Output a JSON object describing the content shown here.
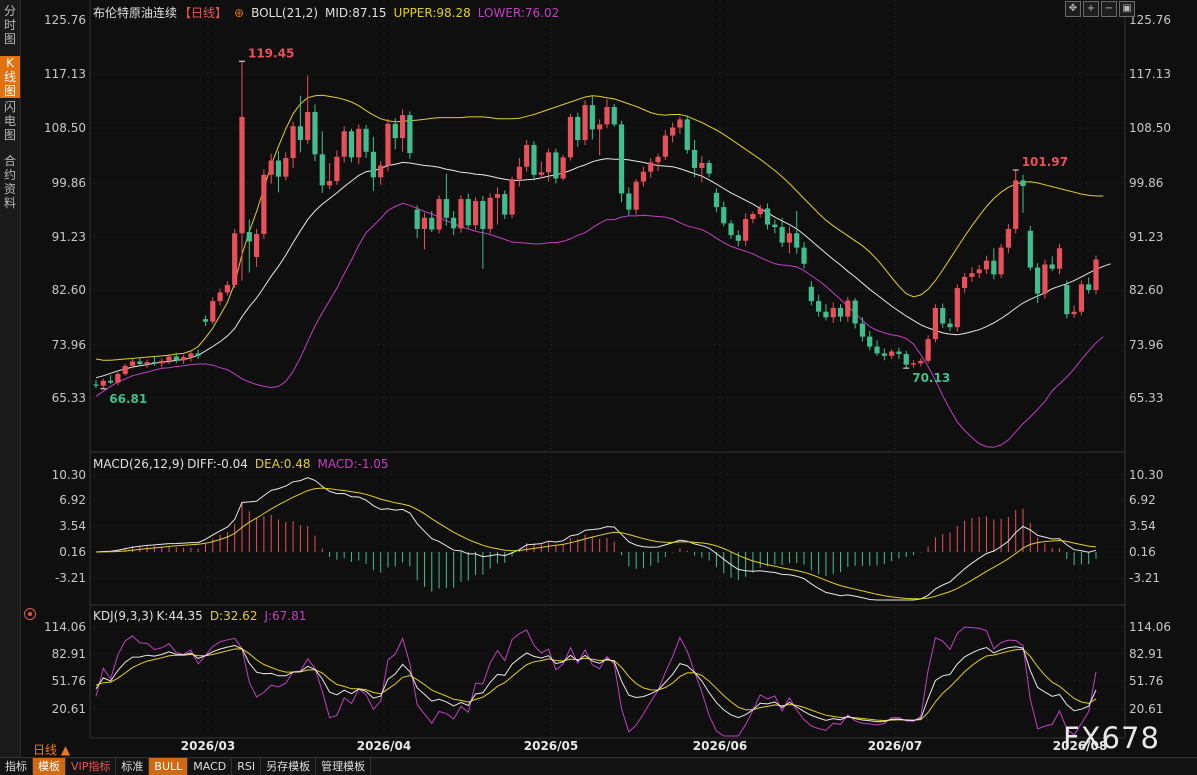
{
  "sidebar": {
    "tabs": [
      {
        "label": "分时图",
        "active": false
      },
      {
        "label": "K线图",
        "active": true
      },
      {
        "label": "闪电图",
        "active": false
      },
      {
        "label": "合约资料",
        "active": false
      }
    ]
  },
  "header": {
    "title": "布伦特原油连续",
    "period_tag": "【日线】",
    "boll_label": "BOLL(21,2)",
    "mid": "MID:87.15",
    "upper": "UPPER:98.28",
    "lower": "LOWER:76.02"
  },
  "macd_header": {
    "label": "MACD(26,12,9)",
    "diff": "DIFF:-0.04",
    "dea": "DEA:0.48",
    "macd": "MACD:-1.05"
  },
  "kdj_header": {
    "label": "KDJ(9,3,3)",
    "k": "K:44.35",
    "d": "D:32.62",
    "j": "J:67.81"
  },
  "price_axis": [
    "125.76",
    "117.13",
    "108.50",
    "99.86",
    "91.23",
    "82.60",
    "73.96",
    "65.33"
  ],
  "macd_axis": [
    "10.30",
    "6.92",
    "3.54",
    "0.16",
    "-3.21"
  ],
  "kdj_axis": [
    "114.06",
    "82.91",
    "51.76",
    "20.61"
  ],
  "x_labels": [
    "2026/03",
    "2026/04",
    "2026/05",
    "2026/06",
    "2026/07",
    "2026/08"
  ],
  "annotations": {
    "high1": "119.45",
    "low1": "66.81",
    "high2": "101.97",
    "low2": "70.13"
  },
  "colors": {
    "up": "#e8505b",
    "down": "#3fbf8f",
    "mid": "#e8e8e8",
    "upper": "#e0d020",
    "lower": "#c040c0",
    "k": "#e8e8e8",
    "d": "#e0d020",
    "j": "#c040c0",
    "accent": "#e07212"
  },
  "toolbar_icons": [
    "move-icon",
    "zoom-in-icon",
    "zoom-out-icon",
    "window-icon"
  ],
  "period_label": "日线 ▲",
  "footer_tabs": [
    {
      "label": "指标",
      "style": "normal"
    },
    {
      "label": "模板",
      "style": "orange"
    },
    {
      "label": "VIP指标",
      "style": "vip"
    },
    {
      "label": "标准",
      "style": "normal"
    },
    {
      "label": "BULL",
      "style": "orange"
    },
    {
      "label": "MACD",
      "style": "normal"
    },
    {
      "label": "RSI",
      "style": "normal"
    },
    {
      "label": "另存模板",
      "style": "normal"
    },
    {
      "label": "管理模板",
      "style": "normal"
    }
  ],
  "watermark": "FX678",
  "chart_data": {
    "type": "candlestick",
    "x_range": [
      "2026/02/13",
      "2026/08/06"
    ],
    "price_ylim": [
      65.33,
      125.76
    ],
    "candles": [
      {
        "o": 67.5,
        "h": 68.2,
        "l": 66.9,
        "c": 67.3
      },
      {
        "o": 67.3,
        "h": 68.4,
        "l": 66.81,
        "c": 68.1
      },
      {
        "o": 68.1,
        "h": 69.0,
        "l": 67.6,
        "c": 67.8
      },
      {
        "o": 67.8,
        "h": 69.5,
        "l": 67.4,
        "c": 69.2
      },
      {
        "o": 69.2,
        "h": 70.8,
        "l": 68.9,
        "c": 70.5
      },
      {
        "o": 70.5,
        "h": 71.6,
        "l": 70.1,
        "c": 71.2
      },
      {
        "o": 71.2,
        "h": 71.8,
        "l": 70.4,
        "c": 70.8
      },
      {
        "o": 70.8,
        "h": 71.5,
        "l": 70.2,
        "c": 71.1
      },
      {
        "o": 71.1,
        "h": 72.0,
        "l": 70.5,
        "c": 70.9
      },
      {
        "o": 70.9,
        "h": 71.7,
        "l": 70.3,
        "c": 71.3
      },
      {
        "o": 71.3,
        "h": 72.4,
        "l": 70.8,
        "c": 72.0
      },
      {
        "o": 72.0,
        "h": 72.6,
        "l": 70.9,
        "c": 71.4
      },
      {
        "o": 71.4,
        "h": 72.3,
        "l": 70.8,
        "c": 71.9
      },
      {
        "o": 71.9,
        "h": 72.8,
        "l": 71.2,
        "c": 72.5
      },
      {
        "o": 72.5,
        "h": 73.1,
        "l": 71.6,
        "c": 72.1
      },
      {
        "o": 78.0,
        "h": 78.6,
        "l": 76.9,
        "c": 77.6
      },
      {
        "o": 77.6,
        "h": 81.5,
        "l": 77.2,
        "c": 80.9
      },
      {
        "o": 80.9,
        "h": 82.9,
        "l": 80.2,
        "c": 82.3
      },
      {
        "o": 82.3,
        "h": 84.1,
        "l": 81.8,
        "c": 83.5
      },
      {
        "o": 83.5,
        "h": 92.5,
        "l": 83.0,
        "c": 91.8
      },
      {
        "o": 91.8,
        "h": 119.45,
        "l": 84.2,
        "c": 110.5
      },
      {
        "o": 92.0,
        "h": 94.0,
        "l": 85.5,
        "c": 90.5
      },
      {
        "o": 88.0,
        "h": 92.5,
        "l": 86.4,
        "c": 91.7
      },
      {
        "o": 91.7,
        "h": 102.1,
        "l": 90.9,
        "c": 101.2
      },
      {
        "o": 101.2,
        "h": 104.6,
        "l": 99.8,
        "c": 103.5
      },
      {
        "o": 103.5,
        "h": 105.0,
        "l": 98.4,
        "c": 100.9
      },
      {
        "o": 100.9,
        "h": 104.8,
        "l": 100.3,
        "c": 103.9
      },
      {
        "o": 103.9,
        "h": 109.7,
        "l": 102.3,
        "c": 109.0
      },
      {
        "o": 109.0,
        "h": 113.9,
        "l": 104.8,
        "c": 106.8
      },
      {
        "o": 106.8,
        "h": 117.2,
        "l": 106.2,
        "c": 111.3
      },
      {
        "o": 111.3,
        "h": 112.5,
        "l": 103.4,
        "c": 104.5
      },
      {
        "o": 104.5,
        "h": 108.2,
        "l": 98.3,
        "c": 99.5
      },
      {
        "o": 99.5,
        "h": 103.1,
        "l": 98.9,
        "c": 100.2
      },
      {
        "o": 100.2,
        "h": 105.1,
        "l": 99.6,
        "c": 104.1
      },
      {
        "o": 104.1,
        "h": 109.0,
        "l": 103.2,
        "c": 108.2
      },
      {
        "o": 108.2,
        "h": 108.6,
        "l": 103.2,
        "c": 104.0
      },
      {
        "o": 104.0,
        "h": 109.3,
        "l": 102.9,
        "c": 108.6
      },
      {
        "o": 108.6,
        "h": 109.2,
        "l": 103.9,
        "c": 104.9
      },
      {
        "o": 104.9,
        "h": 107.3,
        "l": 98.6,
        "c": 100.8
      },
      {
        "o": 100.8,
        "h": 103.4,
        "l": 99.6,
        "c": 102.7
      },
      {
        "o": 102.7,
        "h": 110.2,
        "l": 101.8,
        "c": 109.4
      },
      {
        "o": 109.4,
        "h": 110.3,
        "l": 105.3,
        "c": 107.1
      },
      {
        "o": 107.1,
        "h": 111.7,
        "l": 104.9,
        "c": 110.8
      },
      {
        "o": 110.8,
        "h": 111.4,
        "l": 103.8,
        "c": 104.7
      },
      {
        "o": 95.6,
        "h": 96.3,
        "l": 91.0,
        "c": 92.5
      },
      {
        "o": 92.5,
        "h": 95.1,
        "l": 89.2,
        "c": 94.3
      },
      {
        "o": 94.3,
        "h": 95.4,
        "l": 92.0,
        "c": 92.4
      },
      {
        "o": 92.4,
        "h": 97.9,
        "l": 91.8,
        "c": 97.3
      },
      {
        "o": 97.3,
        "h": 101.4,
        "l": 93.0,
        "c": 94.3
      },
      {
        "o": 94.3,
        "h": 95.4,
        "l": 91.5,
        "c": 92.6
      },
      {
        "o": 92.6,
        "h": 97.9,
        "l": 91.9,
        "c": 97.3
      },
      {
        "o": 97.3,
        "h": 98.2,
        "l": 92.6,
        "c": 93.1
      },
      {
        "o": 93.1,
        "h": 97.6,
        "l": 92.3,
        "c": 97.0
      },
      {
        "o": 97.0,
        "h": 97.8,
        "l": 86.1,
        "c": 92.5
      },
      {
        "o": 92.5,
        "h": 98.2,
        "l": 91.8,
        "c": 97.5
      },
      {
        "o": 97.5,
        "h": 99.2,
        "l": 93.2,
        "c": 98.1
      },
      {
        "o": 98.1,
        "h": 98.7,
        "l": 94.1,
        "c": 94.8
      },
      {
        "o": 94.8,
        "h": 100.9,
        "l": 94.2,
        "c": 100.5
      },
      {
        "o": 100.5,
        "h": 103.9,
        "l": 99.3,
        "c": 102.5
      },
      {
        "o": 102.5,
        "h": 106.8,
        "l": 101.7,
        "c": 106.0
      },
      {
        "o": 106.0,
        "h": 106.6,
        "l": 100.3,
        "c": 101.2
      },
      {
        "o": 101.2,
        "h": 103.3,
        "l": 100.6,
        "c": 101.6
      },
      {
        "o": 101.6,
        "h": 105.4,
        "l": 100.1,
        "c": 104.8
      },
      {
        "o": 104.8,
        "h": 105.4,
        "l": 99.8,
        "c": 100.6
      },
      {
        "o": 100.6,
        "h": 104.4,
        "l": 100.3,
        "c": 104.0
      },
      {
        "o": 104.0,
        "h": 111.0,
        "l": 103.5,
        "c": 110.5
      },
      {
        "o": 110.5,
        "h": 111.2,
        "l": 105.7,
        "c": 106.8
      },
      {
        "o": 106.8,
        "h": 113.2,
        "l": 106.0,
        "c": 112.4
      },
      {
        "o": 112.4,
        "h": 113.8,
        "l": 106.9,
        "c": 108.5
      },
      {
        "o": 108.5,
        "h": 110.1,
        "l": 104.3,
        "c": 109.3
      },
      {
        "o": 109.3,
        "h": 113.4,
        "l": 108.7,
        "c": 112.1
      },
      {
        "o": 112.1,
        "h": 112.6,
        "l": 108.9,
        "c": 109.3
      },
      {
        "o": 109.3,
        "h": 109.9,
        "l": 96.8,
        "c": 98.2
      },
      {
        "o": 98.2,
        "h": 99.2,
        "l": 94.7,
        "c": 95.6
      },
      {
        "o": 95.6,
        "h": 100.5,
        "l": 94.8,
        "c": 100.1
      },
      {
        "o": 100.1,
        "h": 102.5,
        "l": 99.3,
        "c": 101.7
      },
      {
        "o": 101.7,
        "h": 103.9,
        "l": 100.7,
        "c": 103.2
      },
      {
        "o": 103.2,
        "h": 104.6,
        "l": 101.8,
        "c": 104.1
      },
      {
        "o": 104.1,
        "h": 108.4,
        "l": 103.6,
        "c": 107.5
      },
      {
        "o": 107.5,
        "h": 109.6,
        "l": 106.4,
        "c": 108.8
      },
      {
        "o": 108.8,
        "h": 110.6,
        "l": 107.8,
        "c": 110.1
      },
      {
        "o": 110.1,
        "h": 110.8,
        "l": 104.6,
        "c": 105.2
      },
      {
        "o": 105.2,
        "h": 106.8,
        "l": 100.8,
        "c": 102.3
      },
      {
        "o": 102.3,
        "h": 104.2,
        "l": 100.0,
        "c": 103.1
      },
      {
        "o": 103.1,
        "h": 103.6,
        "l": 100.8,
        "c": 101.4
      },
      {
        "o": 98.3,
        "h": 99.0,
        "l": 95.2,
        "c": 96.0
      },
      {
        "o": 96.0,
        "h": 96.9,
        "l": 92.9,
        "c": 93.4
      },
      {
        "o": 93.4,
        "h": 93.9,
        "l": 90.9,
        "c": 91.5
      },
      {
        "o": 91.5,
        "h": 92.3,
        "l": 89.7,
        "c": 90.6
      },
      {
        "o": 90.6,
        "h": 95.0,
        "l": 89.8,
        "c": 94.1
      },
      {
        "o": 94.1,
        "h": 95.3,
        "l": 93.4,
        "c": 94.9
      },
      {
        "o": 94.9,
        "h": 96.4,
        "l": 94.4,
        "c": 95.8
      },
      {
        "o": 95.8,
        "h": 96.6,
        "l": 92.4,
        "c": 93.2
      },
      {
        "o": 93.2,
        "h": 94.0,
        "l": 91.8,
        "c": 92.8
      },
      {
        "o": 92.8,
        "h": 94.3,
        "l": 89.6,
        "c": 90.3
      },
      {
        "o": 90.3,
        "h": 92.9,
        "l": 88.6,
        "c": 91.8
      },
      {
        "o": 91.8,
        "h": 95.4,
        "l": 88.5,
        "c": 89.5
      },
      {
        "o": 89.5,
        "h": 90.4,
        "l": 86.1,
        "c": 86.9
      },
      {
        "o": 83.2,
        "h": 84.1,
        "l": 80.2,
        "c": 80.9
      },
      {
        "o": 80.9,
        "h": 81.9,
        "l": 78.4,
        "c": 79.2
      },
      {
        "o": 79.2,
        "h": 80.4,
        "l": 77.8,
        "c": 78.3
      },
      {
        "o": 78.3,
        "h": 80.7,
        "l": 77.4,
        "c": 79.8
      },
      {
        "o": 79.8,
        "h": 80.4,
        "l": 77.6,
        "c": 78.4
      },
      {
        "o": 78.4,
        "h": 81.6,
        "l": 77.6,
        "c": 81.0
      },
      {
        "o": 81.0,
        "h": 81.4,
        "l": 76.5,
        "c": 77.3
      },
      {
        "o": 77.3,
        "h": 78.3,
        "l": 74.4,
        "c": 75.2
      },
      {
        "o": 75.2,
        "h": 76.1,
        "l": 73.0,
        "c": 73.6
      },
      {
        "o": 73.6,
        "h": 74.6,
        "l": 72.1,
        "c": 72.5
      },
      {
        "o": 72.5,
        "h": 73.3,
        "l": 71.4,
        "c": 72.1
      },
      {
        "o": 72.1,
        "h": 73.2,
        "l": 71.6,
        "c": 72.8
      },
      {
        "o": 72.8,
        "h": 73.4,
        "l": 71.6,
        "c": 72.4
      },
      {
        "o": 72.4,
        "h": 72.9,
        "l": 70.13,
        "c": 70.7
      },
      {
        "o": 70.7,
        "h": 71.4,
        "l": 70.2,
        "c": 70.9
      },
      {
        "o": 70.9,
        "h": 71.7,
        "l": 70.4,
        "c": 71.3
      },
      {
        "o": 71.3,
        "h": 75.4,
        "l": 70.9,
        "c": 74.8
      },
      {
        "o": 74.8,
        "h": 80.4,
        "l": 74.3,
        "c": 79.8
      },
      {
        "o": 79.8,
        "h": 80.5,
        "l": 76.6,
        "c": 77.3
      },
      {
        "o": 77.3,
        "h": 78.1,
        "l": 76.1,
        "c": 76.7
      },
      {
        "o": 76.7,
        "h": 83.6,
        "l": 76.0,
        "c": 83.0
      },
      {
        "o": 83.0,
        "h": 85.4,
        "l": 82.2,
        "c": 84.8
      },
      {
        "o": 84.8,
        "h": 86.4,
        "l": 84.0,
        "c": 85.4
      },
      {
        "o": 85.4,
        "h": 86.7,
        "l": 84.6,
        "c": 86.0
      },
      {
        "o": 86.0,
        "h": 88.2,
        "l": 85.3,
        "c": 87.4
      },
      {
        "o": 87.4,
        "h": 89.4,
        "l": 84.4,
        "c": 85.2
      },
      {
        "o": 85.2,
        "h": 90.1,
        "l": 84.6,
        "c": 89.5
      },
      {
        "o": 89.5,
        "h": 93.3,
        "l": 88.6,
        "c": 92.5
      },
      {
        "o": 92.5,
        "h": 101.97,
        "l": 91.8,
        "c": 100.3
      },
      {
        "o": 100.3,
        "h": 101.2,
        "l": 95.1,
        "c": 99.4
      },
      {
        "o": 92.2,
        "h": 93.0,
        "l": 85.8,
        "c": 86.3
      },
      {
        "o": 86.3,
        "h": 87.0,
        "l": 80.6,
        "c": 82.1
      },
      {
        "o": 82.1,
        "h": 87.6,
        "l": 81.3,
        "c": 86.8
      },
      {
        "o": 86.8,
        "h": 88.1,
        "l": 85.7,
        "c": 86.1
      },
      {
        "o": 86.1,
        "h": 90.1,
        "l": 85.2,
        "c": 89.4
      },
      {
        "o": 83.5,
        "h": 84.2,
        "l": 78.1,
        "c": 78.8
      },
      {
        "o": 78.8,
        "h": 80.2,
        "l": 78.2,
        "c": 79.2
      },
      {
        "o": 79.2,
        "h": 84.2,
        "l": 78.6,
        "c": 83.6
      },
      {
        "o": 83.6,
        "h": 84.7,
        "l": 82.1,
        "c": 82.7
      },
      {
        "o": 82.7,
        "h": 88.2,
        "l": 82.0,
        "c": 87.6
      }
    ],
    "boll_mid": [
      68.6,
      68.9,
      69.3,
      69.7,
      70.0,
      70.3,
      70.5,
      70.7,
      70.9,
      71.1,
      71.2,
      71.4,
      71.5,
      71.8,
      72.2,
      72.9,
      73.6,
      74.4,
      75.3,
      76.5,
      78.4,
      80.0,
      81.4,
      83.1,
      84.9,
      86.5,
      88.3,
      90.3,
      92.2,
      94.0,
      95.4,
      96.5,
      97.4,
      98.3,
      99.3,
      100.2,
      101.1,
      101.7,
      101.9,
      102.2,
      102.7,
      102.9,
      103.2,
      103.1,
      102.9,
      102.7,
      102.6,
      102.4,
      102.1,
      101.9,
      101.6,
      101.5,
      101.3,
      101.2,
      101.0,
      100.7,
      100.5,
      100.3,
      100.3,
      100.4,
      100.5,
      100.7,
      101.0,
      101.2,
      101.5,
      101.9,
      102.4,
      102.8,
      103.3,
      103.6,
      103.8,
      103.7,
      103.7,
      103.6,
      103.4,
      103.2,
      102.9,
      102.7,
      102.6,
      102.5,
      102.2,
      101.8,
      101.4,
      101.0,
      100.4,
      99.7,
      99.0,
      98.3,
      97.7,
      97.1,
      96.5,
      95.8,
      95.1,
      94.4,
      93.8,
      93.2,
      92.5,
      91.6,
      90.6,
      89.6,
      88.6,
      87.6,
      86.7,
      85.7,
      84.8,
      83.8,
      82.8,
      81.9,
      81.0,
      80.1,
      79.3,
      78.5,
      77.8,
      77.1,
      76.6,
      76.2,
      75.8,
      75.6,
      75.5,
      75.7,
      76.0,
      76.3,
      76.8,
      77.4,
      78.1,
      78.9,
      79.8,
      80.6,
      81.2,
      81.7,
      82.2,
      82.9,
      83.3,
      83.7,
      84.2,
      84.8,
      85.4,
      86.0,
      86.5,
      86.9
    ],
    "boll_upper": [
      71.6,
      71.4,
      71.4,
      71.5,
      71.6,
      71.7,
      71.8,
      71.9,
      72.0,
      72.1,
      72.2,
      72.4,
      72.5,
      72.9,
      73.6,
      75.0,
      76.6,
      78.6,
      80.7,
      83.8,
      88.4,
      92.1,
      95.3,
      99.0,
      102.8,
      105.8,
      108.6,
      111.0,
      112.6,
      113.6,
      113.9,
      114.0,
      113.8,
      113.6,
      113.3,
      112.9,
      112.3,
      111.5,
      110.8,
      110.2,
      109.9,
      109.7,
      109.8,
      109.9,
      110.0,
      110.1,
      110.3,
      110.4,
      110.4,
      110.4,
      110.4,
      110.5,
      110.5,
      110.5,
      110.4,
      110.2,
      110.2,
      110.2,
      110.3,
      110.6,
      110.9,
      111.3,
      111.7,
      112.1,
      112.5,
      112.9,
      113.3,
      113.7,
      113.9,
      113.8,
      113.6,
      113.4,
      113.0,
      112.6,
      112.2,
      111.7,
      111.2,
      110.9,
      110.8,
      110.9,
      110.9,
      110.6,
      110.1,
      109.6,
      109.0,
      108.4,
      107.7,
      106.9,
      106.1,
      105.3,
      104.5,
      103.7,
      102.8,
      101.9,
      100.9,
      99.8,
      98.6,
      97.4,
      96.2,
      95.0,
      93.9,
      93.0,
      92.2,
      91.4,
      90.6,
      89.8,
      88.8,
      87.6,
      86.2,
      84.7,
      83.3,
      82.1,
      81.6,
      81.9,
      82.8,
      84.2,
      85.9,
      87.7,
      89.5,
      91.3,
      93.0,
      94.6,
      96.1,
      97.4,
      98.4,
      99.2,
      99.7,
      100.0,
      100.1,
      99.9,
      99.6,
      99.3,
      99.0,
      98.7,
      98.4,
      98.1,
      97.9,
      97.8,
      97.8
    ]
  }
}
